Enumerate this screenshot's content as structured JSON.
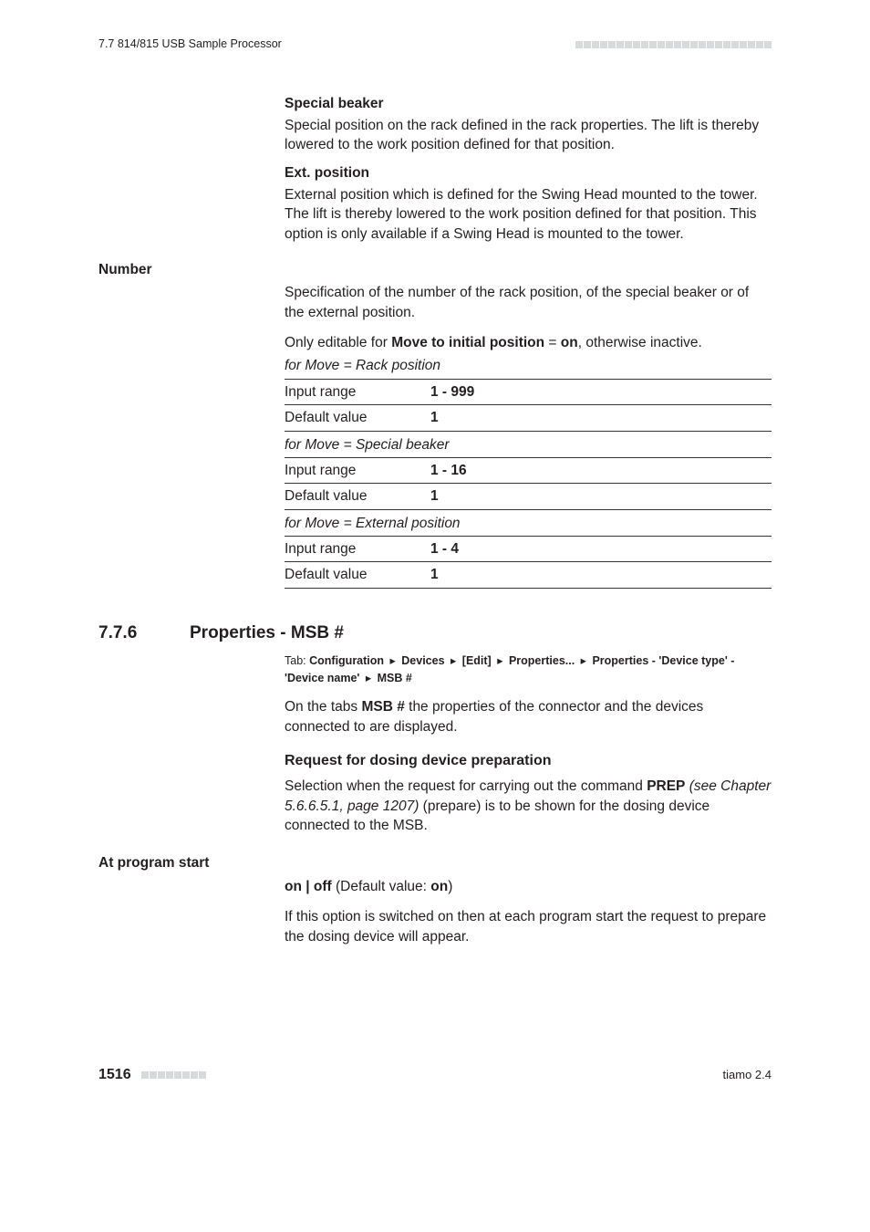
{
  "header": {
    "left": "7.7 814/815 USB Sample Processor",
    "dash_count": 24,
    "dash_color": "#d9dadb"
  },
  "special_beaker": {
    "heading": "Special beaker",
    "body": "Special position on the rack defined in the rack properties. The lift is thereby lowered to the work position defined for that position."
  },
  "ext_position": {
    "heading": "Ext. position",
    "body": "External position which is defined for the Swing Head mounted to the tower. The lift is thereby lowered to the work position defined for that position. This option is only available if a Swing Head is mounted to the tower."
  },
  "number": {
    "side_label": "Number",
    "spec": "Specification of the number of the rack position, of the special beaker or of the external position.",
    "editable_prefix": "Only editable for ",
    "editable_bold": "Move to initial position",
    "editable_eq": " = ",
    "editable_on": "on",
    "editable_suffix": ", otherwise inactive."
  },
  "tables": {
    "labels": {
      "input": "Input range",
      "default": "Default value"
    },
    "rack": {
      "caption": "for Move = Rack position",
      "input": "1 - 999",
      "default": "1"
    },
    "special": {
      "caption": "for Move = Special beaker",
      "input": "1 - 16",
      "default": "1"
    },
    "ext": {
      "caption": "for Move = External position",
      "input": "1 - 4",
      "default": "1"
    }
  },
  "section": {
    "num": "7.7.6",
    "title": "Properties - MSB #",
    "tab_prefix": "Tab: ",
    "crumbs": [
      "Configuration",
      "Devices",
      "[Edit]",
      "Properties...",
      "Properties - 'Device type' - 'Device name'",
      "MSB #"
    ],
    "arrow": "▸",
    "para1_a": "On the tabs ",
    "para1_b": "MSB #",
    "para1_c": " the properties of the connector and the devices connected to are displayed.",
    "sub_heading": "Request for dosing device preparation",
    "para2_a": "Selection when the request for carrying out the command ",
    "para2_b": "PREP",
    "para2_c": " ",
    "para2_italic": "(see Chapter 5.6.6.5.1, page 1207)",
    "para2_d": " (prepare) is to be shown for the dosing device connected to the MSB."
  },
  "program_start": {
    "side_label": "At program start",
    "onoff_a": "on | off",
    "onoff_b": " (Default value: ",
    "onoff_c": "on",
    "onoff_d": ")",
    "body": "If this option is switched on then at each program start the request to prepare the dosing device will appear."
  },
  "footer": {
    "page": "1516",
    "dash_count": 8,
    "product": "tiamo 2.4"
  }
}
